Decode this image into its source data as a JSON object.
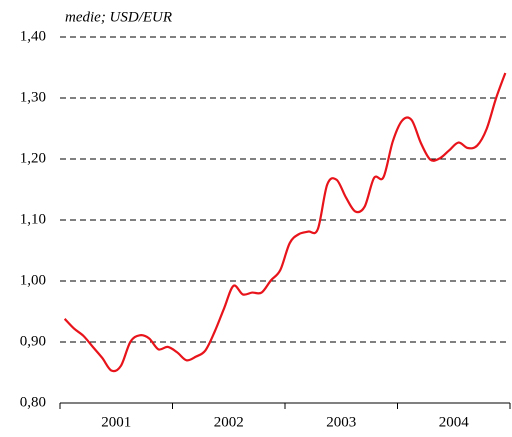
{
  "chart_data": {
    "type": "line",
    "y_axis_label": "medie; USD/EUR",
    "year_labels": [
      "2001",
      "2002",
      "2003",
      "2004"
    ],
    "series": [
      {
        "color": "#e8141b",
        "values": [
          0.938,
          0.922,
          0.91,
          0.892,
          0.874,
          0.853,
          0.861,
          0.9,
          0.911,
          0.906,
          0.888,
          0.892,
          0.883,
          0.87,
          0.876,
          0.886,
          0.917,
          0.955,
          0.992,
          0.978,
          0.981,
          0.981,
          1.001,
          1.018,
          1.062,
          1.077,
          1.081,
          1.085,
          1.158,
          1.166,
          1.137,
          1.114,
          1.122,
          1.169,
          1.17,
          1.229,
          1.263,
          1.264,
          1.226,
          1.199,
          1.201,
          1.214,
          1.227,
          1.218,
          1.222,
          1.249,
          1.299,
          1.341
        ]
      }
    ],
    "ylim": [
      0.8,
      1.4
    ],
    "yticks": [
      {
        "value": 0.8,
        "label": "0,80"
      },
      {
        "value": 0.9,
        "label": "0,90"
      },
      {
        "value": 1.0,
        "label": "1,00"
      },
      {
        "value": 1.1,
        "label": "1,10"
      },
      {
        "value": 1.2,
        "label": "1,20"
      },
      {
        "value": 1.3,
        "label": "1,30"
      },
      {
        "value": 1.4,
        "label": "1,40"
      }
    ],
    "grid": true
  }
}
